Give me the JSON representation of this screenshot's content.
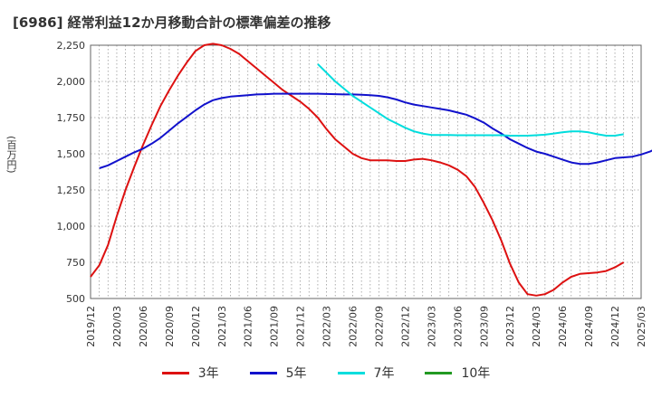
{
  "chart_data": {
    "type": "line",
    "title": "[6986]  経常利益12か月移動合計の標準偏差の推移",
    "ylabel": "(百万円)",
    "xlabel": "",
    "ylim": [
      500,
      2250
    ],
    "yticks": [
      500,
      750,
      1000,
      1250,
      1500,
      1750,
      2000,
      2250
    ],
    "ytick_labels": [
      "500",
      "750",
      "1,000",
      "1,250",
      "1,500",
      "1,750",
      "2,000",
      "2,250"
    ],
    "x_tick_labels": [
      "2019/12",
      "2020/03",
      "2020/06",
      "2020/09",
      "2020/12",
      "2021/03",
      "2021/06",
      "2021/09",
      "2021/12",
      "2022/03",
      "2022/06",
      "2022/09",
      "2022/12",
      "2023/03",
      "2023/06",
      "2023/09",
      "2023/12",
      "2024/03",
      "2024/06",
      "2024/09",
      "2024/12",
      "2025/03"
    ],
    "grid": true,
    "legend_position": "bottom",
    "series": [
      {
        "name": "3年",
        "color": "#dd1111",
        "values": [
          650,
          730,
          870,
          1070,
          1250,
          1410,
          1560,
          1700,
          1830,
          1940,
          2040,
          2130,
          2210,
          2250,
          2260,
          2250,
          2225,
          2190,
          2140,
          2090,
          2040,
          1990,
          1940,
          1900,
          1860,
          1810,
          1750,
          1670,
          1600,
          1550,
          1500,
          1470,
          1455,
          1455,
          1455,
          1450,
          1450,
          1460,
          1465,
          1455,
          1440,
          1420,
          1390,
          1345,
          1270,
          1160,
          1040,
          900,
          740,
          610,
          530,
          520,
          530,
          560,
          610,
          650,
          670,
          675,
          680,
          690,
          715,
          750
        ]
      },
      {
        "name": "5年",
        "color": "#1111cc",
        "values": [
          null,
          null,
          null,
          null,
          null,
          null,
          null,
          null,
          null,
          null,
          null,
          null,
          null,
          null,
          null,
          null,
          null,
          null,
          null,
          null,
          null,
          null,
          null,
          null,
          null,
          null,
          null,
          null,
          null,
          null,
          null,
          null,
          null,
          null,
          null,
          null,
          null,
          null,
          null,
          null,
          null,
          null,
          null,
          null,
          null,
          null,
          null,
          null,
          null,
          null,
          null,
          null,
          null,
          null,
          null,
          null,
          null,
          null,
          null,
          null,
          null,
          null
        ]
      },
      {
        "name": "7年",
        "color": "#00dddd",
        "values": [
          null,
          null,
          null,
          null,
          null,
          null,
          null,
          null,
          null,
          null,
          null,
          null,
          null,
          null,
          null,
          null,
          null,
          null,
          null,
          null,
          null,
          null,
          null,
          null,
          null,
          null,
          2120,
          2060,
          2000,
          1950,
          1900,
          1860,
          1820,
          1780,
          1740,
          1710,
          1680,
          1655,
          1640,
          1630,
          1630,
          1630,
          1628,
          1628,
          1628,
          1628,
          1628,
          1628,
          1625,
          1625,
          1625,
          1628,
          1632,
          1640,
          1648,
          1655,
          1655,
          1648,
          1635,
          1625,
          1625,
          1635
        ]
      },
      {
        "name": "10年",
        "color": "#229922",
        "values": []
      }
    ],
    "blue_values": [
      1400,
      1420,
      1450,
      1480,
      1510,
      1535,
      1570,
      1610,
      1660,
      1710,
      1755,
      1800,
      1840,
      1870,
      1885,
      1895,
      1900,
      1905,
      1910,
      1912,
      1915,
      1915,
      1915,
      1915,
      1915,
      1915,
      1913,
      1912,
      1910,
      1910,
      1908,
      1905,
      1900,
      1890,
      1875,
      1855,
      1840,
      1830,
      1820,
      1810,
      1800,
      1785,
      1770,
      1745,
      1715,
      1675,
      1640,
      1600,
      1570,
      1540,
      1515,
      1500,
      1480,
      1460,
      1440,
      1430,
      1430,
      1440,
      1455,
      1470,
      1475,
      1480,
      1495,
      1515,
      1545
    ]
  }
}
